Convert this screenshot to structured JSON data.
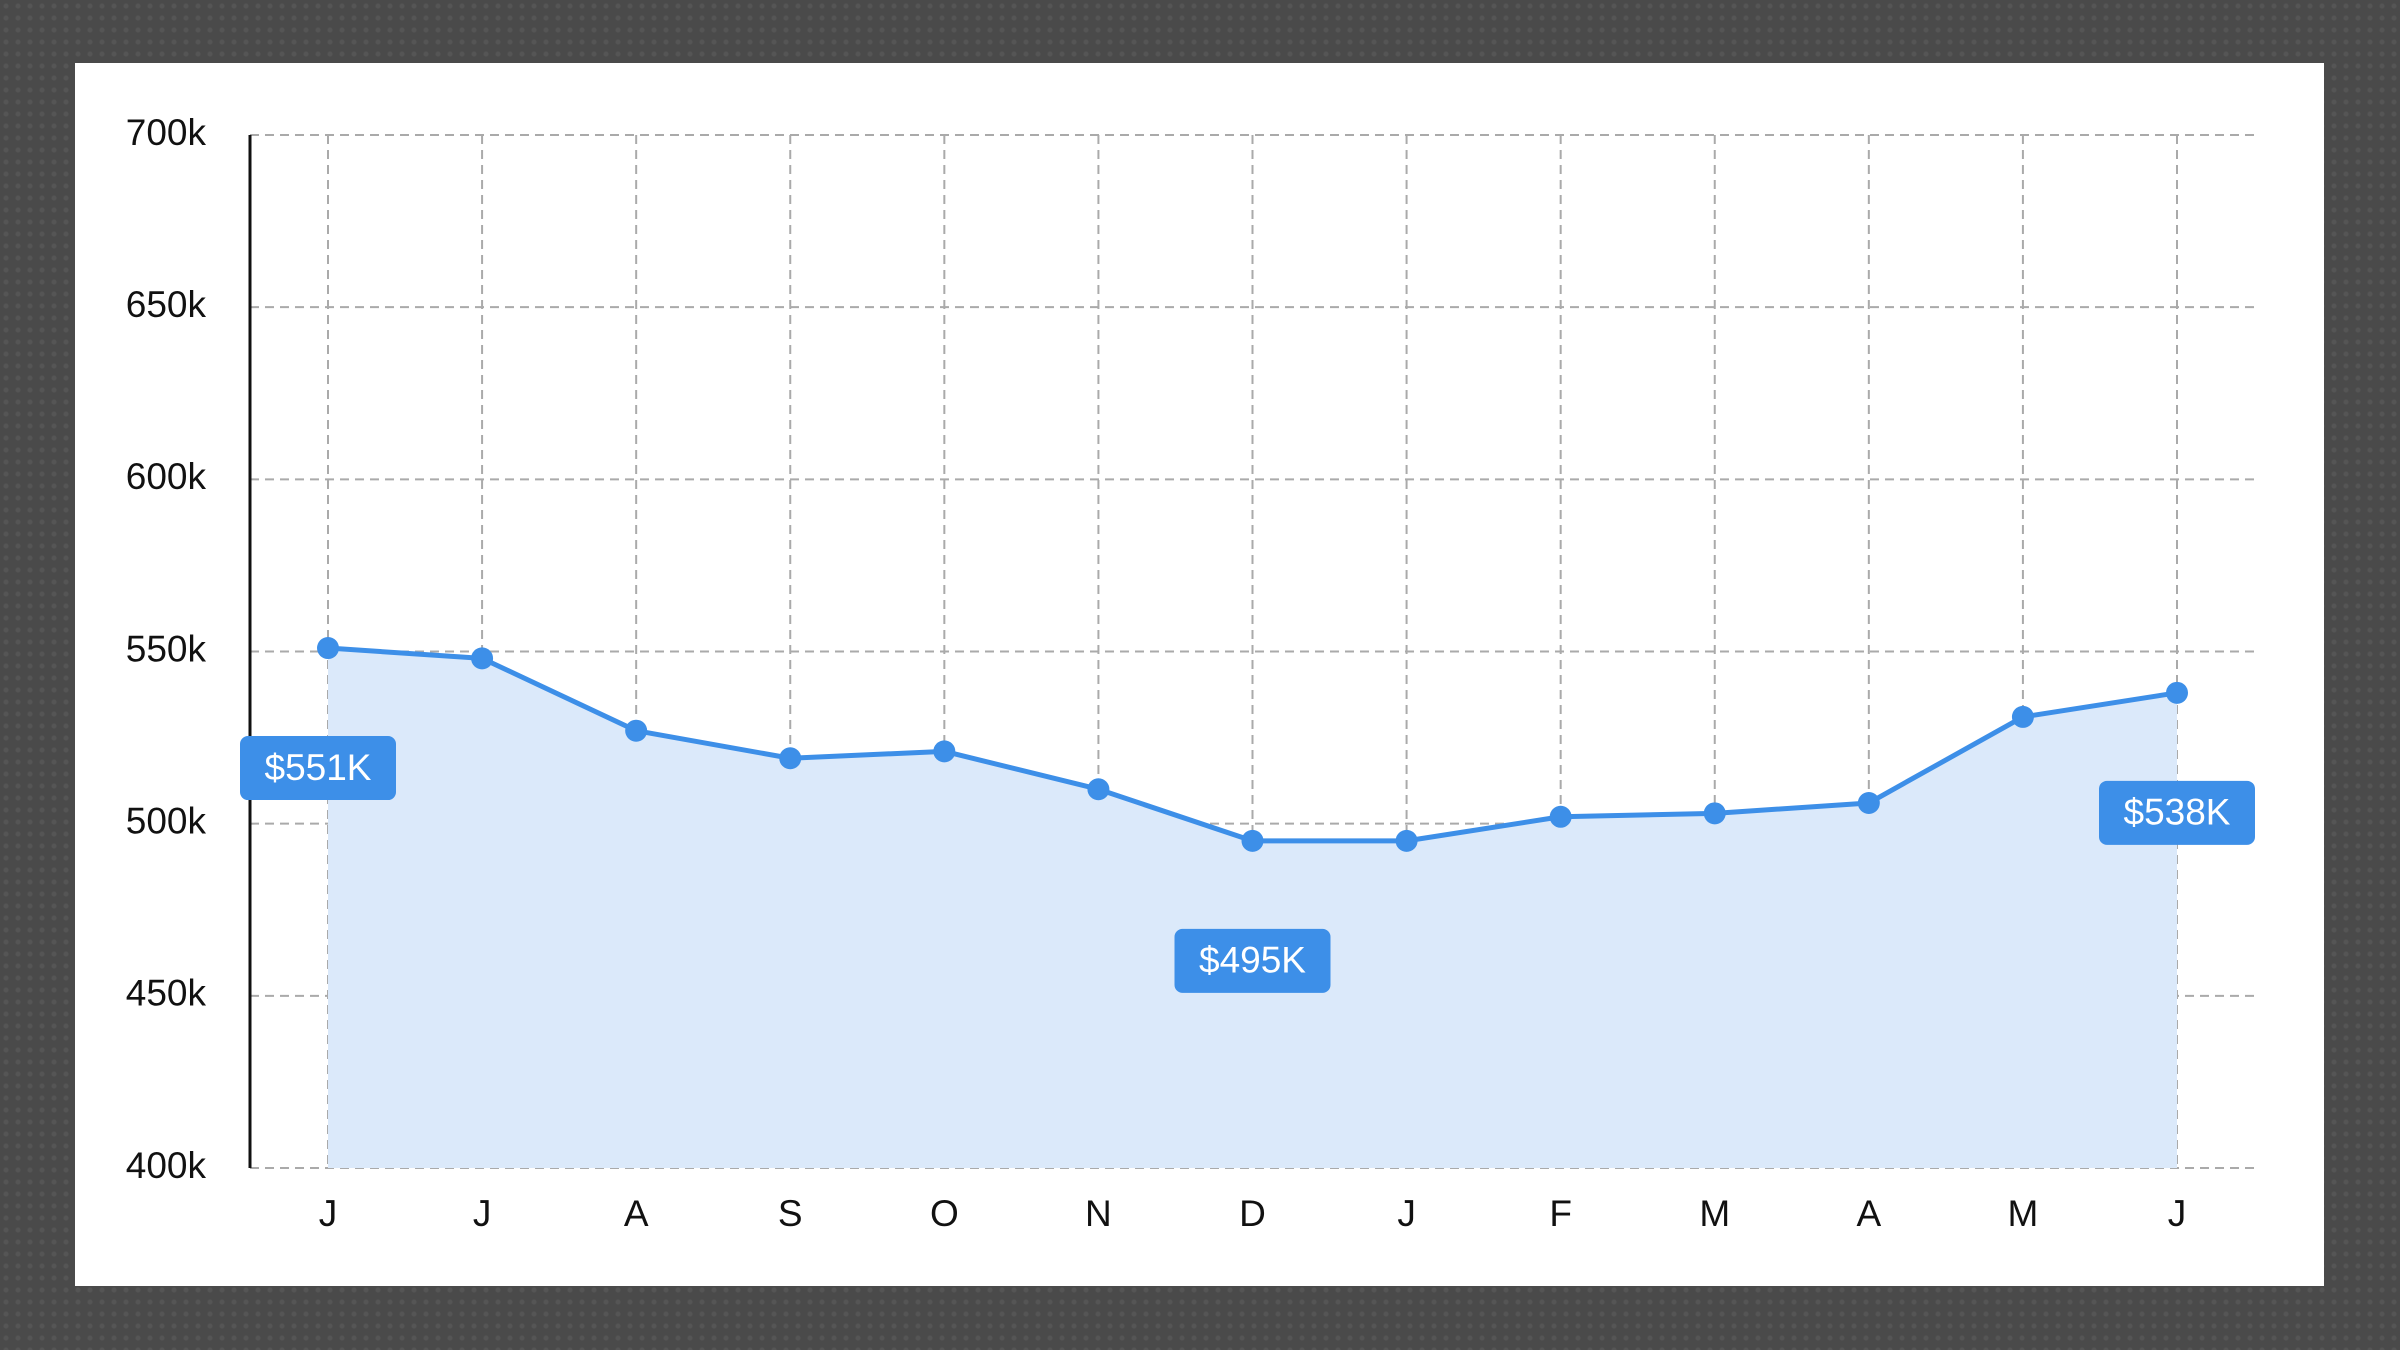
{
  "chart_data": {
    "type": "area",
    "categories": [
      "J",
      "J",
      "A",
      "S",
      "O",
      "N",
      "D",
      "J",
      "F",
      "M",
      "A",
      "M",
      "J"
    ],
    "values": [
      551,
      548,
      527,
      519,
      521,
      510,
      495,
      495,
      502,
      503,
      506,
      531,
      538
    ],
    "value_labels": [
      "$551K",
      null,
      null,
      null,
      null,
      null,
      "$495K",
      null,
      null,
      null,
      null,
      null,
      "$538K"
    ],
    "color": "#3d8fe8",
    "fill": "#dbe9fa",
    "ylim": [
      400,
      700
    ],
    "yticks": [
      {
        "value": 400,
        "label": "400k"
      },
      {
        "value": 450,
        "label": "450k"
      },
      {
        "value": 500,
        "label": "500k"
      },
      {
        "value": 550,
        "label": "550k"
      },
      {
        "value": 600,
        "label": "600k"
      },
      {
        "value": 650,
        "label": "650k"
      },
      {
        "value": 700,
        "label": "700k"
      }
    ],
    "grid": true
  }
}
